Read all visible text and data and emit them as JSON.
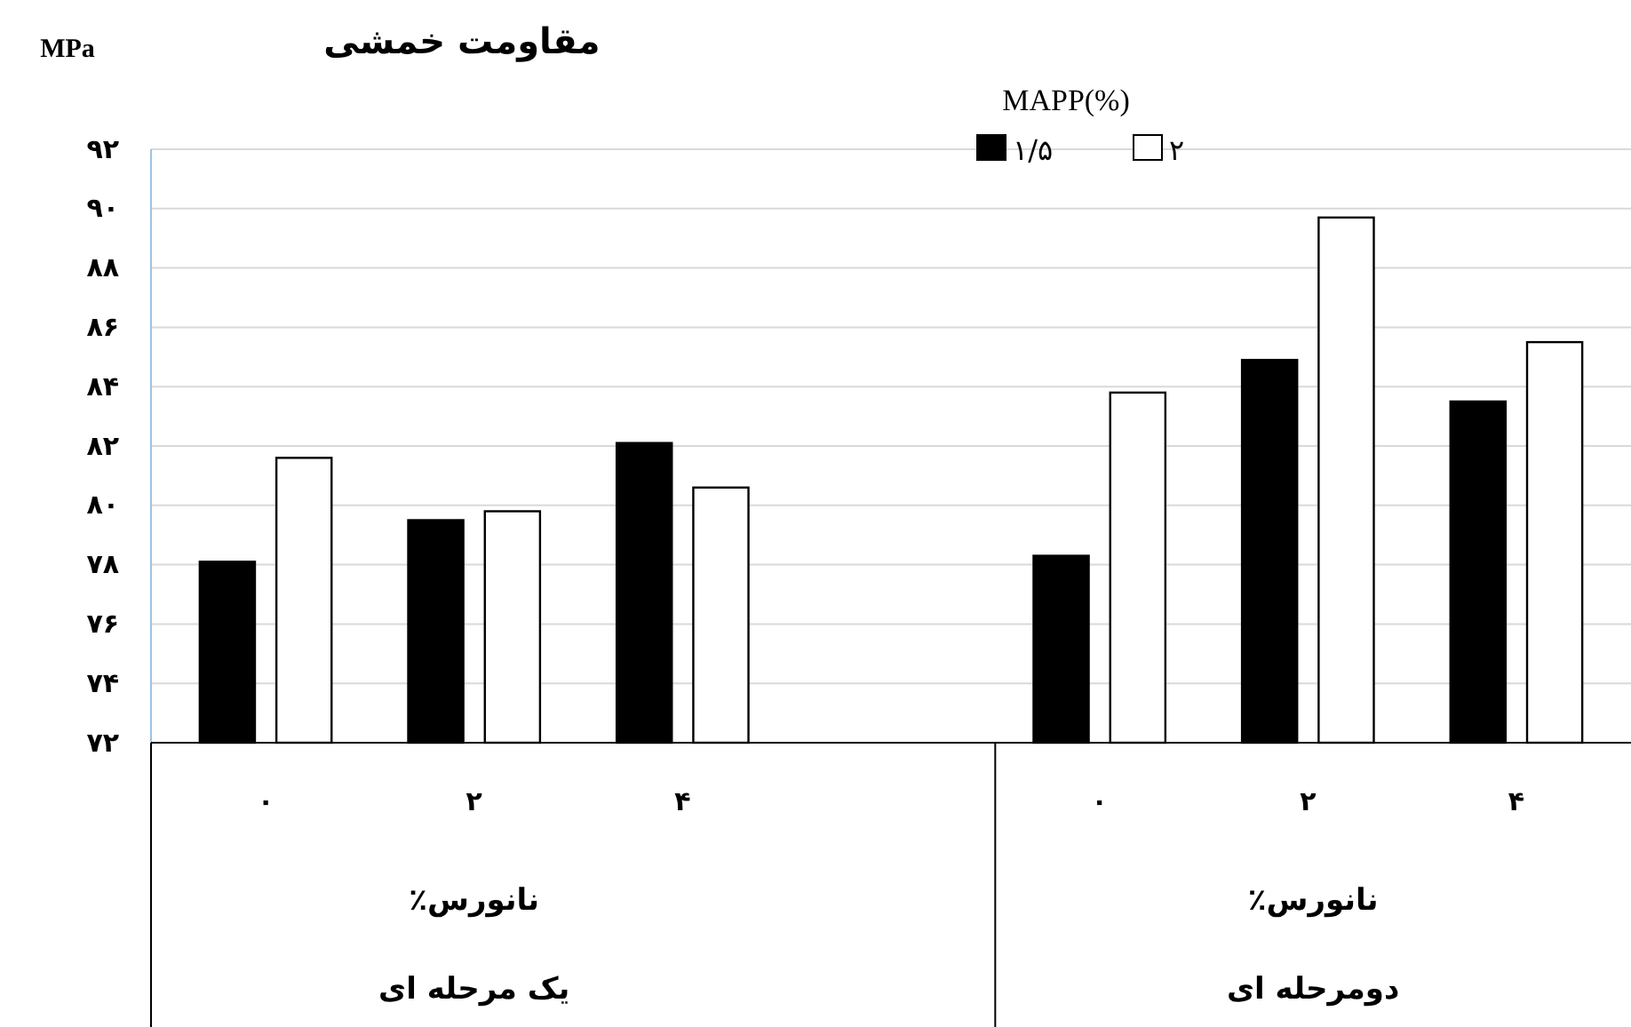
{
  "chart_data": {
    "type": "bar",
    "title": "مقاومت خمشی",
    "ylabel": "MPa",
    "legend_title": "MAPP(%)",
    "categories": [
      "۰",
      "۲",
      "۴",
      null,
      "۰",
      "۲",
      "۴"
    ],
    "series": [
      {
        "name": "۱/۵",
        "color": "#000000",
        "values": [
          78.1,
          79.5,
          82.1,
          null,
          78.3,
          84.9,
          83.5
        ]
      },
      {
        "name": "۲",
        "color": "#ffffff",
        "values": [
          81.6,
          79.8,
          80.6,
          null,
          83.8,
          89.7,
          85.5
        ]
      }
    ],
    "ylim": [
      72,
      92
    ],
    "yticks": [
      {
        "value": 72,
        "label": "۷۲"
      },
      {
        "value": 74,
        "label": "۷۴"
      },
      {
        "value": 76,
        "label": "۷۶"
      },
      {
        "value": 78,
        "label": "۷۸"
      },
      {
        "value": 80,
        "label": "۸۰"
      },
      {
        "value": 82,
        "label": "۸۲"
      },
      {
        "value": 84,
        "label": "۸۴"
      },
      {
        "value": 86,
        "label": "۸۶"
      },
      {
        "value": 88,
        "label": "۸۸"
      },
      {
        "value": 90,
        "label": "۹۰"
      },
      {
        "value": 92,
        "label": "۹۲"
      }
    ],
    "grid": "y",
    "legend": "top",
    "annotations": [
      "نانورس٪",
      "نانورس٪",
      "یک مرحله ای",
      "دومرحله ای"
    ]
  }
}
